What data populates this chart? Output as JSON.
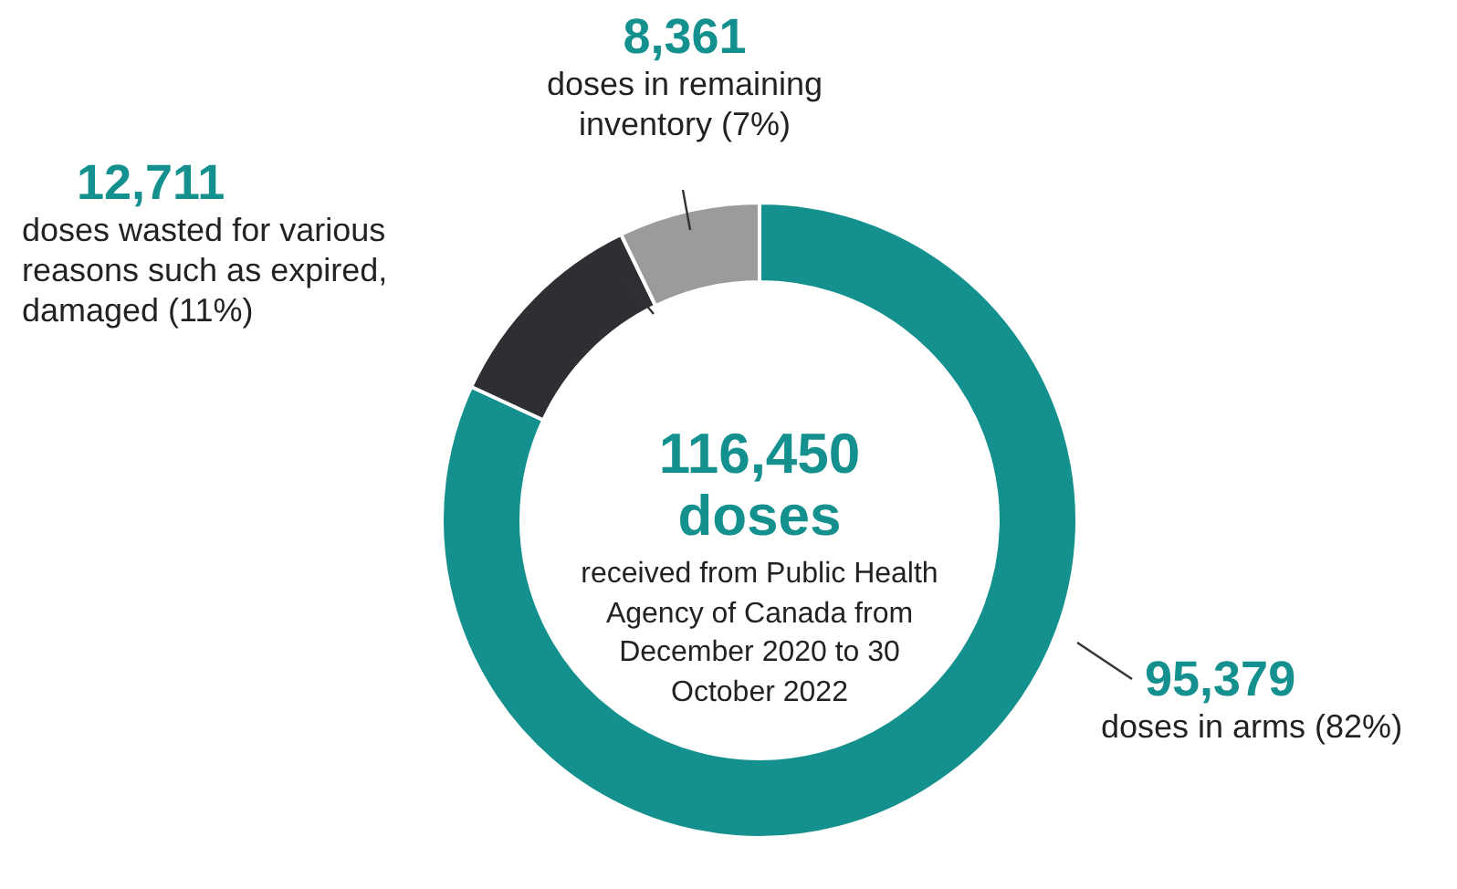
{
  "chart_data": {
    "type": "donut",
    "categories": [
      "doses in arms (82%)",
      "doses wasted for various reasons such as expired, damaged (11%)",
      "doses in remaining inventory (7%)"
    ],
    "values": [
      95379,
      12711,
      8361
    ],
    "colors": [
      "#14918f",
      "#2e2f33",
      "#9a9b9d"
    ],
    "value_labels": [
      "95,379",
      "12,711",
      "8,361"
    ],
    "annotations": [
      "116,450",
      "doses",
      "received from Public Health Agency of Canada from December 2020 to 30 October 2022"
    ],
    "legend": false
  }
}
